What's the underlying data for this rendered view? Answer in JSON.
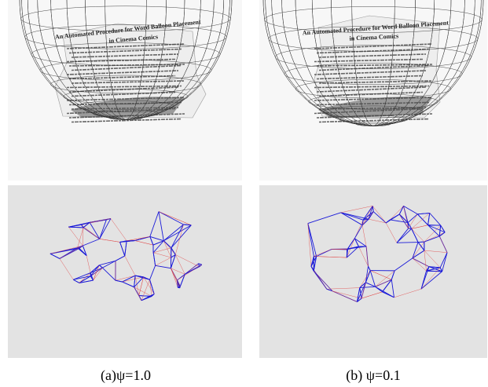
{
  "panels": [
    {
      "paper_title": [
        "An Automated Procedure for Word Balloon Placement",
        "in Cinema Comics"
      ],
      "caption": "(a)ψ=1.0"
    },
    {
      "paper_title": [
        "An Automated Procedure for Word Balloon Placement",
        "in Cinema Comics"
      ],
      "caption": "(b) ψ=0.1"
    }
  ]
}
